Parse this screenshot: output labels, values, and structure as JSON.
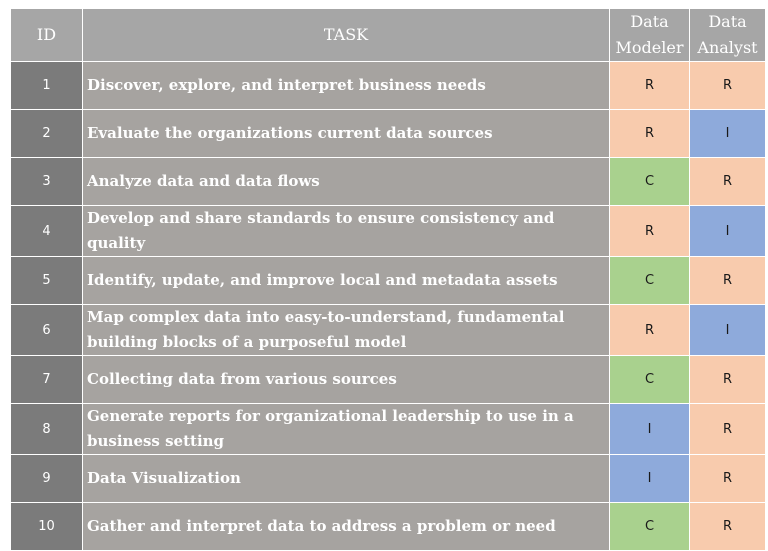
{
  "header": {
    "id": "ID",
    "task": "TASK",
    "data_modeler": "Data Modeler",
    "data_analyst": "Data Analyst"
  },
  "colors": {
    "R": "#f8cbad",
    "C": "#a9d18e",
    "I": "#8eaadb",
    "header_bg": "#a6a6a6",
    "id_bg": "#7b7b7b",
    "task_bg": "#a6a3a0"
  },
  "rows": [
    {
      "id": "1",
      "task": "Discover, explore, and interpret business needs",
      "data_modeler": "R",
      "data_analyst": "R"
    },
    {
      "id": "2",
      "task": "Evaluate the organizations current data sources",
      "data_modeler": "R",
      "data_analyst": "I"
    },
    {
      "id": "3",
      "task": "Analyze data and data flows",
      "data_modeler": "C",
      "data_analyst": "R"
    },
    {
      "id": "4",
      "task": "Develop and share standards to ensure consistency and quality",
      "data_modeler": "R",
      "data_analyst": "I"
    },
    {
      "id": "5",
      "task": "Identify, update, and improve local and metadata assets",
      "data_modeler": "C",
      "data_analyst": "R"
    },
    {
      "id": "6",
      "task": "Map complex data into easy-to-understand, fundamental building blocks of a purposeful model",
      "data_modeler": "R",
      "data_analyst": "I"
    },
    {
      "id": "7",
      "task": "Collecting data from various sources",
      "data_modeler": "C",
      "data_analyst": "R"
    },
    {
      "id": "8",
      "task": "Generate reports for organizational leadership to use in a business setting",
      "data_modeler": "I",
      "data_analyst": "R"
    },
    {
      "id": "9",
      "task": "Data Visualization",
      "data_modeler": "I",
      "data_analyst": "R"
    },
    {
      "id": "10",
      "task": "Gather and interpret data to address a problem or need",
      "data_modeler": "C",
      "data_analyst": "R"
    }
  ]
}
